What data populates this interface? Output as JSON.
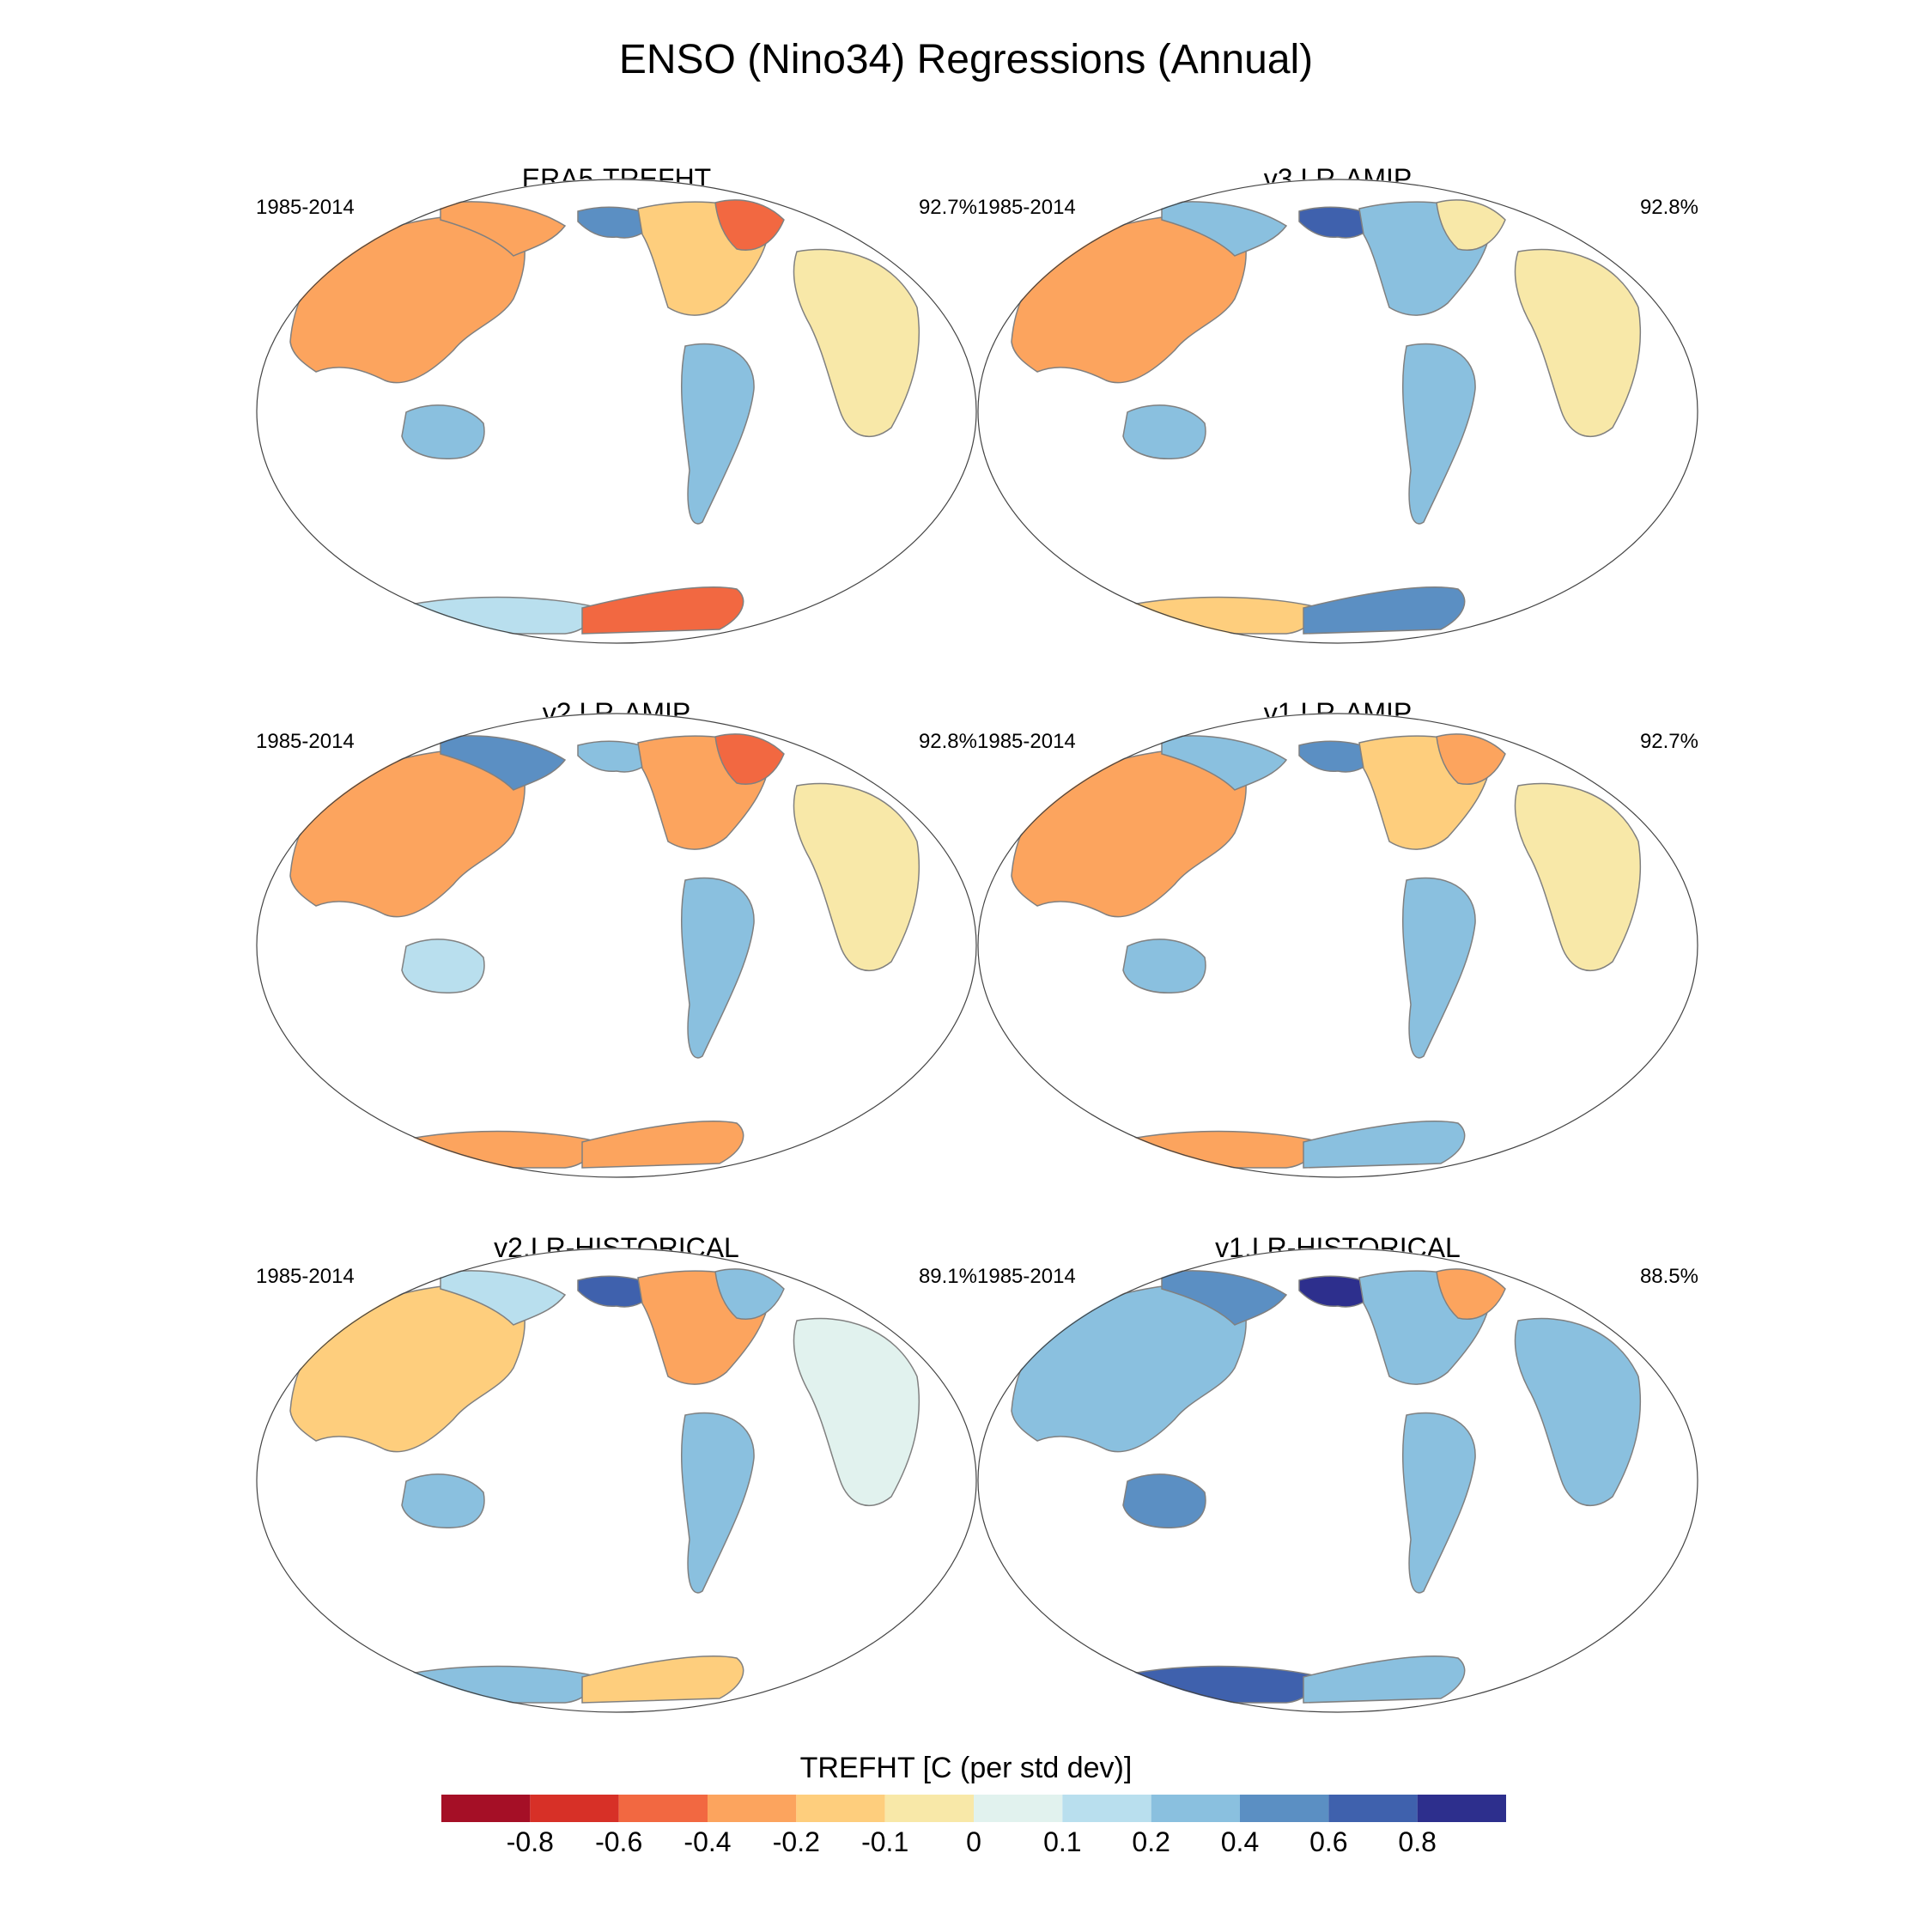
{
  "title": "ENSO (Nino34) Regressions (Annual)",
  "panels": [
    {
      "name": "ERA5-TREFHT",
      "period": "1985-2014",
      "pct": "92.7%",
      "regions": {
        "eurasia": -0.4,
        "siberia": -0.3,
        "alaska": 0.4,
        "north_america": -0.2,
        "canada_east": -0.5,
        "south_america": 0.2,
        "africa": -0.05,
        "australia": 0.2,
        "antarctica_w": 0.1,
        "antarctica_e": -0.5
      }
    },
    {
      "name": "v3.LR-AMIP",
      "period": "1985-2014",
      "pct": "92.8%",
      "regions": {
        "eurasia": -0.3,
        "siberia": 0.2,
        "alaska": 0.7,
        "north_america": 0.3,
        "canada_east": -0.1,
        "south_america": 0.2,
        "africa": -0.1,
        "australia": 0.2,
        "antarctica_w": -0.2,
        "antarctica_e": 0.5
      }
    },
    {
      "name": "v2.LR-AMIP",
      "period": "1985-2014",
      "pct": "92.8%",
      "regions": {
        "eurasia": -0.4,
        "siberia": 0.5,
        "alaska": 0.2,
        "north_america": -0.4,
        "canada_east": -0.6,
        "south_america": 0.2,
        "africa": -0.05,
        "australia": 0.1,
        "antarctica_w": -0.3,
        "antarctica_e": -0.4
      }
    },
    {
      "name": "v1.LR-AMIP",
      "period": "1985-2014",
      "pct": "92.7%",
      "regions": {
        "eurasia": -0.3,
        "siberia": 0.3,
        "alaska": 0.4,
        "north_america": -0.2,
        "canada_east": -0.4,
        "south_america": 0.3,
        "africa": -0.05,
        "australia": 0.2,
        "antarctica_w": -0.3,
        "antarctica_e": 0.2
      }
    },
    {
      "name": "v2.LR-HISTORICAL",
      "period": "1985-2014",
      "pct": "89.1%",
      "regions": {
        "eurasia": -0.2,
        "siberia": 0.1,
        "alaska": 0.6,
        "north_america": -0.3,
        "canada_east": 0.2,
        "south_america": 0.2,
        "africa": 0.05,
        "australia": 0.2,
        "antarctica_w": 0.2,
        "antarctica_e": -0.2
      }
    },
    {
      "name": "v1.LR-HISTORICAL",
      "period": "1985-2014",
      "pct": "88.5%",
      "regions": {
        "eurasia": 0.3,
        "siberia": 0.5,
        "alaska": 0.8,
        "north_america": 0.3,
        "canada_east": -0.3,
        "south_america": 0.3,
        "africa": 0.3,
        "australia": 0.4,
        "antarctica_w": 0.6,
        "antarctica_e": 0.3
      }
    }
  ],
  "colorbar": {
    "title": "TREFHT [C (per std dev)]",
    "labels": [
      "-0.8",
      "-0.6",
      "-0.4",
      "-0.2",
      "-0.1",
      "0",
      "0.1",
      "0.2",
      "0.4",
      "0.6",
      "0.8"
    ],
    "levels": [
      -0.8,
      -0.6,
      -0.4,
      -0.2,
      -0.1,
      0,
      0.1,
      0.2,
      0.4,
      0.6,
      0.8
    ],
    "colors": [
      "#a50f26",
      "#d73027",
      "#f26841",
      "#fca45e",
      "#fece7d",
      "#f8e8a8",
      "#e1f2ee",
      "#b9dfee",
      "#8ac0df",
      "#5b8fc3",
      "#3f61ad",
      "#2d2f8d"
    ]
  },
  "chart_data": {
    "type": "heatmap",
    "title": "ENSO (Nino34) Regressions (Annual)",
    "variable": "TREFHT [C (per std dev)]",
    "levels": [
      -0.8,
      -0.6,
      -0.4,
      -0.2,
      -0.1,
      0,
      0.1,
      0.2,
      0.4,
      0.6,
      0.8
    ],
    "series": [
      {
        "name": "ERA5-TREFHT",
        "period": "1985-2014",
        "pattern_pct": 92.7
      },
      {
        "name": "v3.LR-AMIP",
        "period": "1985-2014",
        "pattern_pct": 92.8
      },
      {
        "name": "v2.LR-AMIP",
        "period": "1985-2014",
        "pattern_pct": 92.8
      },
      {
        "name": "v1.LR-AMIP",
        "period": "1985-2014",
        "pattern_pct": 92.7
      },
      {
        "name": "v2.LR-HISTORICAL",
        "period": "1985-2014",
        "pattern_pct": 89.1
      },
      {
        "name": "v1.LR-HISTORICAL",
        "period": "1985-2014",
        "pattern_pct": 88.5
      }
    ]
  }
}
